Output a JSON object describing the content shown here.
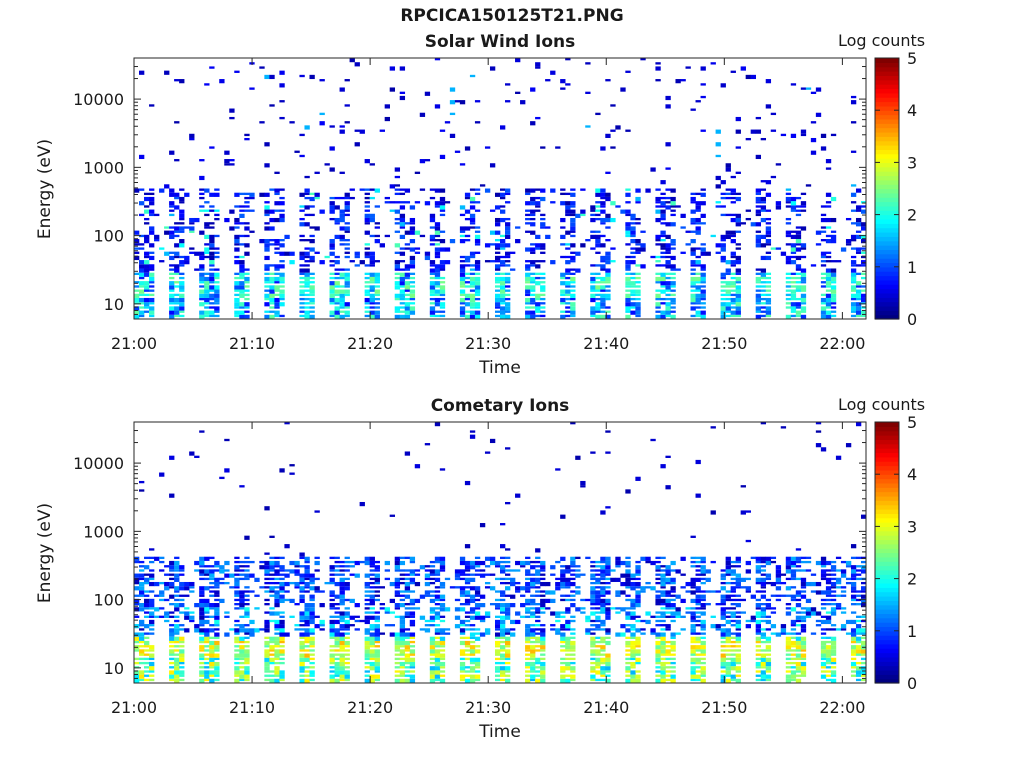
{
  "figure_title": "RPCICA150125T21.PNG",
  "chart_data": [
    {
      "type": "heatmap",
      "title": "Solar Wind Ions",
      "xlabel": "Time",
      "ylabel": "Energy (eV)",
      "x_ticks": [
        "21:00",
        "21:10",
        "21:20",
        "21:30",
        "21:40",
        "21:50",
        "22:00"
      ],
      "y_scale": "log",
      "y_ticks": [
        10,
        100,
        1000,
        10000
      ],
      "y_tick_labels": [
        "10",
        "100",
        "1000",
        "10000"
      ],
      "ylim": [
        6,
        40000
      ],
      "colorbar": {
        "label": "Log counts",
        "range": [
          0,
          5
        ],
        "ticks": [
          "0",
          "1",
          "2",
          "3",
          "4",
          "5"
        ],
        "colormap": "jet"
      },
      "pattern": "sweep_bands"
    },
    {
      "type": "heatmap",
      "title": "Cometary Ions",
      "xlabel": "Time",
      "ylabel": "Energy (eV)",
      "x_ticks": [
        "21:00",
        "21:10",
        "21:20",
        "21:30",
        "21:40",
        "21:50",
        "22:00"
      ],
      "y_scale": "log",
      "y_ticks": [
        10,
        100,
        1000,
        10000
      ],
      "y_tick_labels": [
        "10",
        "100",
        "1000",
        "10000"
      ],
      "ylim": [
        6,
        40000
      ],
      "colorbar": {
        "label": "Log counts",
        "range": [
          0,
          5
        ],
        "ticks": [
          "0",
          "1",
          "2",
          "3",
          "4",
          "5"
        ],
        "colormap": "jet"
      },
      "pattern": "dense_low_energy"
    }
  ]
}
